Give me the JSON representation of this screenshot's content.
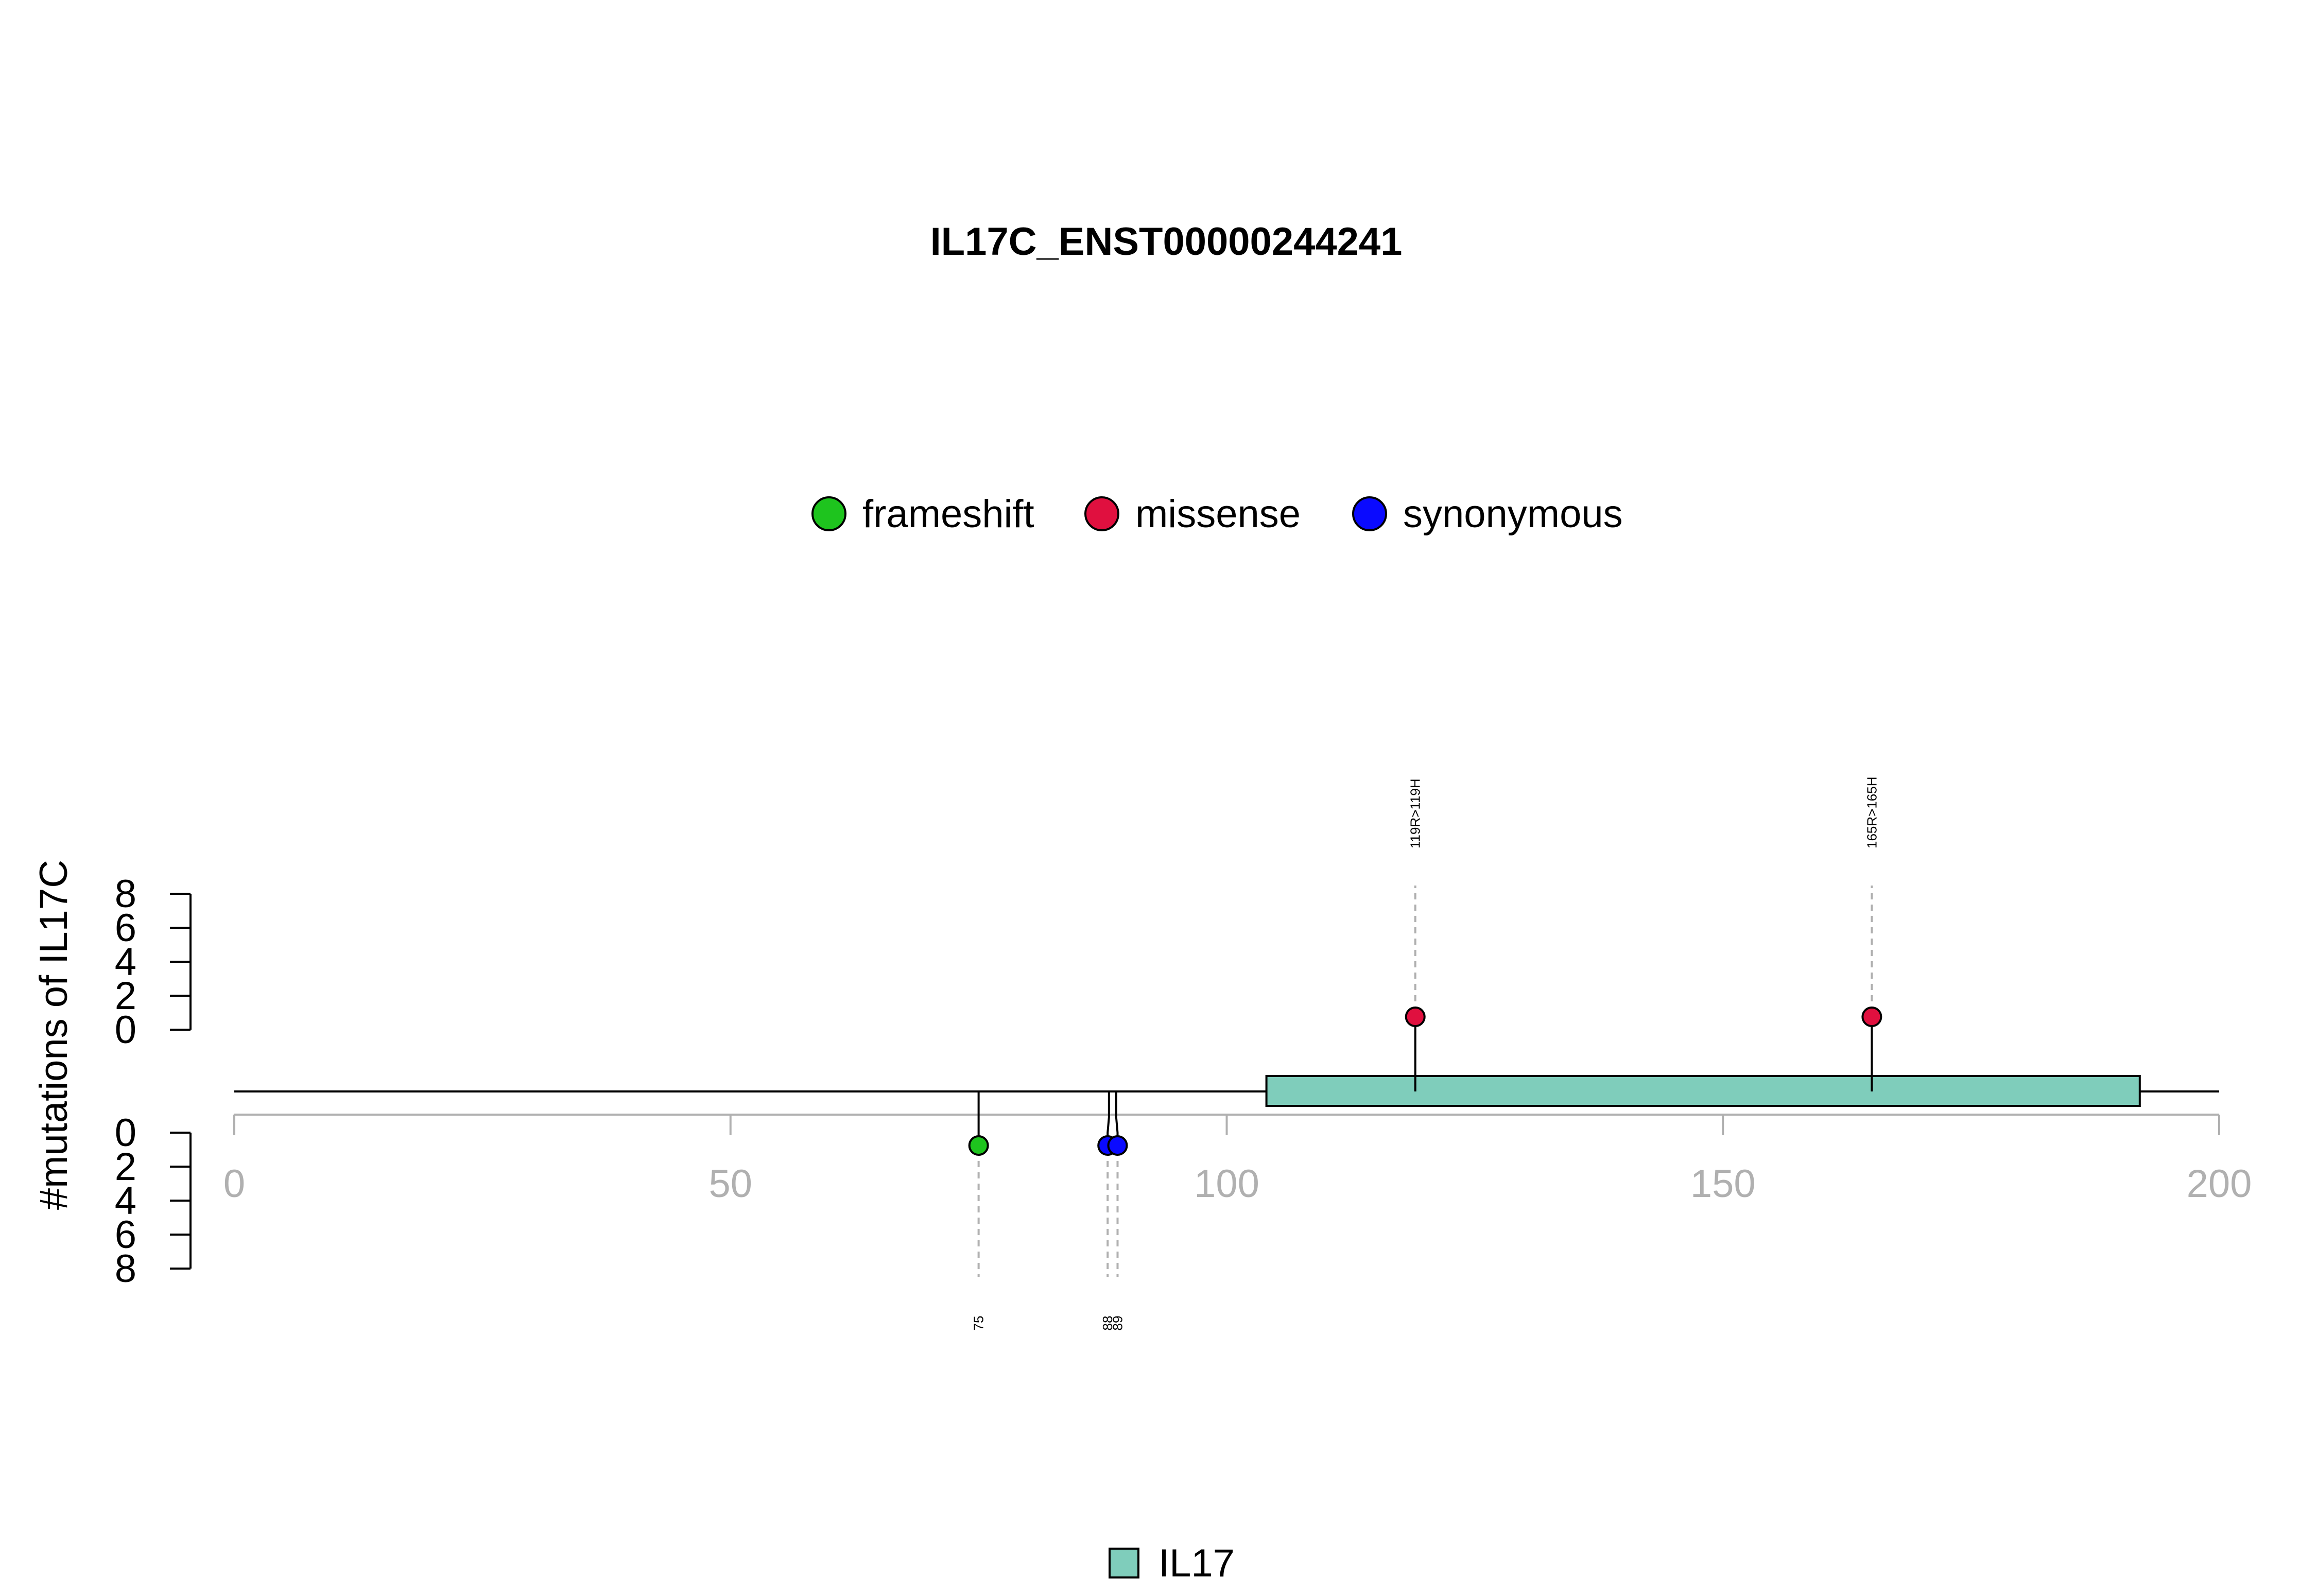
{
  "chart_data": {
    "type": "lollipop",
    "title": "IL17C_ENST00000244241",
    "ylabel": "#mutations of IL17C",
    "xlim": [
      0,
      200
    ],
    "xticks": [
      "0",
      "50",
      "100",
      "150",
      "200"
    ],
    "yticks": [
      "0",
      "2",
      "4",
      "6",
      "8"
    ],
    "legend": [
      {
        "label": "frameshift",
        "color": "#1ec41e"
      },
      {
        "label": "missense",
        "color": "#e0103f"
      },
      {
        "label": "synonymous",
        "color": "#0a0aff"
      }
    ],
    "mutations": [
      {
        "position": 75,
        "label": "75",
        "type": "frameshift",
        "side": "bottom",
        "count": 1
      },
      {
        "position": 88,
        "label": "88",
        "type": "synonymous",
        "side": "bottom",
        "count": 1
      },
      {
        "position": 89,
        "label": "89",
        "type": "synonymous",
        "side": "bottom",
        "count": 1
      },
      {
        "position": 119,
        "label": "119R>119H",
        "type": "missense",
        "side": "top",
        "count": 1
      },
      {
        "position": 165,
        "label": "165R>165H",
        "type": "missense",
        "side": "top",
        "count": 1
      }
    ],
    "domains": [
      {
        "name": "IL17",
        "start": 104,
        "end": 192,
        "color": "#7fcdbb"
      }
    ],
    "domain_legend": [
      {
        "label": "IL17",
        "color": "#7fcdbb"
      }
    ]
  }
}
